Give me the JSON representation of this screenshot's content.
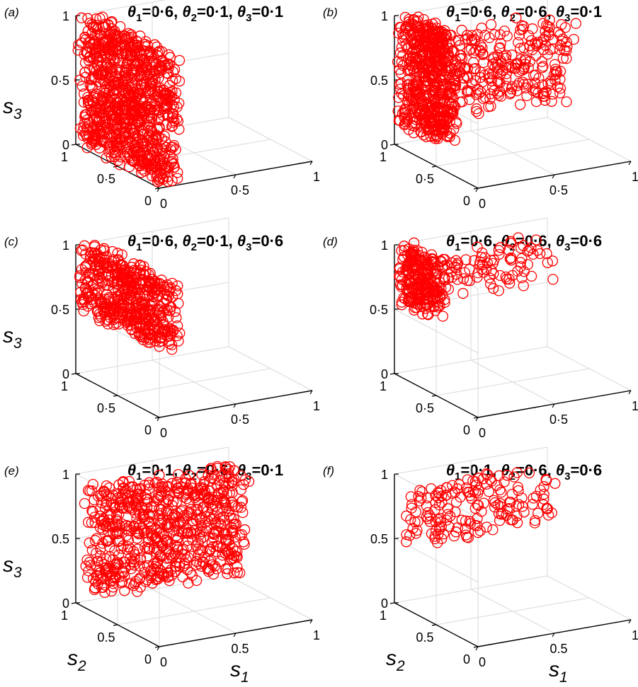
{
  "figure": {
    "panels": [
      {
        "label": "(a)",
        "title_parts": [
          "θ",
          "1",
          "=0·6, ",
          "θ",
          "2",
          "=0·1, ",
          "θ",
          "3",
          "=0·1"
        ]
      },
      {
        "label": "(b)",
        "title_parts": [
          "θ",
          "1",
          "=0·6, ",
          "θ",
          "2",
          "=0·6, ",
          "θ",
          "3",
          "=0·1"
        ]
      },
      {
        "label": "(c)",
        "title_parts": [
          "θ",
          "1",
          "=0·6, ",
          "θ",
          "2",
          "=0·1, ",
          "θ",
          "3",
          "=0·6"
        ]
      },
      {
        "label": "(d)",
        "title_parts": [
          "θ",
          "1",
          "=0·6, ",
          "θ",
          "2",
          "=0·6, ",
          "θ",
          "3",
          "=0·6"
        ]
      },
      {
        "label": "(e)",
        "title_parts": [
          "θ",
          "1",
          "=0·1, ",
          "θ",
          "2",
          "=0·6, ",
          "θ",
          "3",
          "=0·1"
        ]
      },
      {
        "label": "(f)",
        "title_parts": [
          "θ",
          "1",
          "=0·1, ",
          "θ",
          "2",
          "=0·6, ",
          "θ",
          "3",
          "=0·6"
        ]
      }
    ]
  },
  "chart_data": [
    {
      "type": "scatter",
      "panel": "(a)",
      "marker": "open-circle",
      "color": "#ff0000",
      "xlabel": "",
      "ylabel": "",
      "zlabel_parts": [
        "s",
        "3"
      ],
      "xlim": [
        0,
        1
      ],
      "ylim": [
        0,
        1
      ],
      "zlim": [
        0,
        1
      ],
      "grid": true,
      "ticks": {
        "x": [
          "0",
          "0·5",
          "1"
        ],
        "y": [
          "0",
          "0·5",
          "1"
        ],
        "z": [
          "0",
          "0·5",
          "1"
        ]
      },
      "clusters": [
        {
          "s1": [
            0.0,
            0.15
          ],
          "s2": [
            0.0,
            1.0
          ],
          "s3": [
            0.0,
            1.0
          ],
          "count": 900
        }
      ]
    },
    {
      "type": "scatter",
      "panel": "(b)",
      "marker": "open-circle",
      "color": "#ff0000",
      "xlabel": "",
      "ylabel": "",
      "zlabel_parts": [],
      "xlim": [
        0,
        1
      ],
      "ylim": [
        0,
        1
      ],
      "zlim": [
        0,
        1
      ],
      "grid": true,
      "ticks": {
        "x": [
          "0",
          "0·5",
          "1"
        ],
        "y": [
          "0",
          "0·5",
          "1"
        ],
        "z": [
          "0",
          "0.5",
          "1"
        ]
      },
      "clusters": [
        {
          "s1": [
            0.0,
            0.15
          ],
          "s2": [
            0.5,
            1.0
          ],
          "s3": [
            0.15,
            1.0
          ],
          "count": 500
        },
        {
          "s1": [
            0.15,
            1.0
          ],
          "s2": [
            0.6,
            1.0
          ],
          "s3": [
            0.25,
            0.85
          ],
          "count": 300
        }
      ]
    },
    {
      "type": "scatter",
      "panel": "(c)",
      "marker": "open-circle",
      "color": "#ff0000",
      "xlabel": "",
      "ylabel": "",
      "zlabel_parts": [
        "s",
        "3"
      ],
      "xlim": [
        0,
        1
      ],
      "ylim": [
        0,
        1
      ],
      "zlim": [
        0,
        1
      ],
      "grid": true,
      "ticks": {
        "x": [
          "0",
          "0·5",
          "1"
        ],
        "y": [
          "0",
          "0·5",
          "1"
        ],
        "z": [
          "0",
          "0·5",
          "1"
        ]
      },
      "clusters": [
        {
          "s1": [
            0.0,
            0.15
          ],
          "s2": [
            0.0,
            1.0
          ],
          "s3": [
            0.5,
            1.0
          ],
          "count": 500
        }
      ]
    },
    {
      "type": "scatter",
      "panel": "(d)",
      "marker": "open-circle",
      "color": "#ff0000",
      "xlabel": "",
      "ylabel": "",
      "zlabel_parts": [],
      "xlim": [
        0,
        1
      ],
      "ylim": [
        0,
        1
      ],
      "zlim": [
        0,
        1
      ],
      "grid": true,
      "ticks": {
        "x": [
          "0",
          "0·5",
          "1"
        ],
        "y": [
          "0",
          "0·5",
          "1"
        ],
        "z": [
          "0",
          "0·5",
          "1"
        ]
      },
      "clusters": [
        {
          "s1": [
            0.0,
            0.15
          ],
          "s2": [
            0.6,
            1.0
          ],
          "s3": [
            0.55,
            1.0
          ],
          "count": 250
        },
        {
          "s1": [
            0.2,
            1.0
          ],
          "s2": [
            0.8,
            1.0
          ],
          "s3": [
            0.55,
            0.9
          ],
          "count": 90
        }
      ]
    },
    {
      "type": "scatter",
      "panel": "(e)",
      "marker": "open-circle",
      "color": "#ff0000",
      "xlabel_parts": [
        "s",
        "1"
      ],
      "ylabel_parts": [
        "s",
        "2"
      ],
      "zlabel_parts": [
        "s",
        "3"
      ],
      "xlim": [
        0,
        1
      ],
      "ylim": [
        0,
        1
      ],
      "zlim": [
        0,
        1
      ],
      "grid": true,
      "ticks": {
        "x": [
          "0",
          "0.5",
          "1"
        ],
        "y": [
          "0",
          "0.5",
          "1"
        ],
        "z": [
          "0",
          "0.5",
          "1"
        ]
      },
      "clusters": [
        {
          "s1": [
            0.05,
            1.0
          ],
          "s2": [
            0.75,
            1.0
          ],
          "s3": [
            0.1,
            0.9
          ],
          "count": 700
        }
      ]
    },
    {
      "type": "scatter",
      "panel": "(f)",
      "marker": "open-circle",
      "color": "#ff0000",
      "xlabel_parts": [
        "s",
        "1"
      ],
      "ylabel_parts": [
        "s",
        "2"
      ],
      "zlabel_parts": [],
      "xlim": [
        0,
        1
      ],
      "ylim": [
        0,
        1
      ],
      "zlim": [
        0,
        1
      ],
      "grid": true,
      "ticks": {
        "x": [
          "0",
          "0.5",
          "1"
        ],
        "y": [
          "0",
          "0.5",
          "1"
        ],
        "z": [
          "0",
          "0.5",
          "1"
        ]
      },
      "clusters": [
        {
          "s1": [
            0.05,
            1.0
          ],
          "s2": [
            0.85,
            1.0
          ],
          "s3": [
            0.45,
            0.9
          ],
          "count": 170
        }
      ]
    }
  ]
}
